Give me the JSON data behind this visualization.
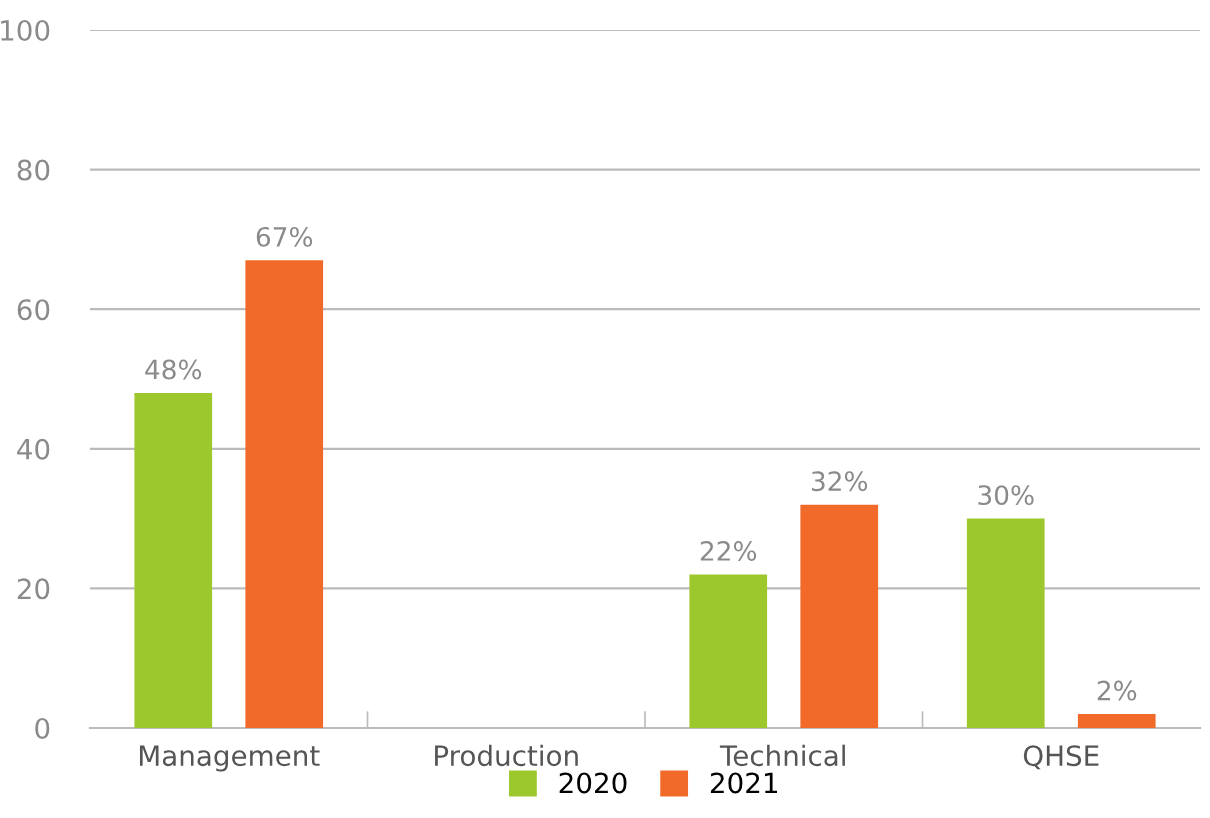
{
  "chart_data": {
    "type": "bar",
    "categories": [
      "Management",
      "Production",
      "Technical",
      "QHSE"
    ],
    "series": [
      {
        "name": "2020",
        "color": "#9dc82d",
        "values": [
          48,
          null,
          22,
          30
        ],
        "value_labels": [
          "48%",
          null,
          "22%",
          "30%"
        ]
      },
      {
        "name": "2021",
        "color": "#f26a2a",
        "values": [
          67,
          null,
          32,
          2
        ],
        "value_labels": [
          "67%",
          null,
          "32%",
          "2%"
        ]
      }
    ],
    "ylim": [
      0,
      100
    ],
    "yticks": [
      0,
      20,
      40,
      60,
      80,
      100
    ],
    "grid": "y",
    "legend": "bottom"
  }
}
